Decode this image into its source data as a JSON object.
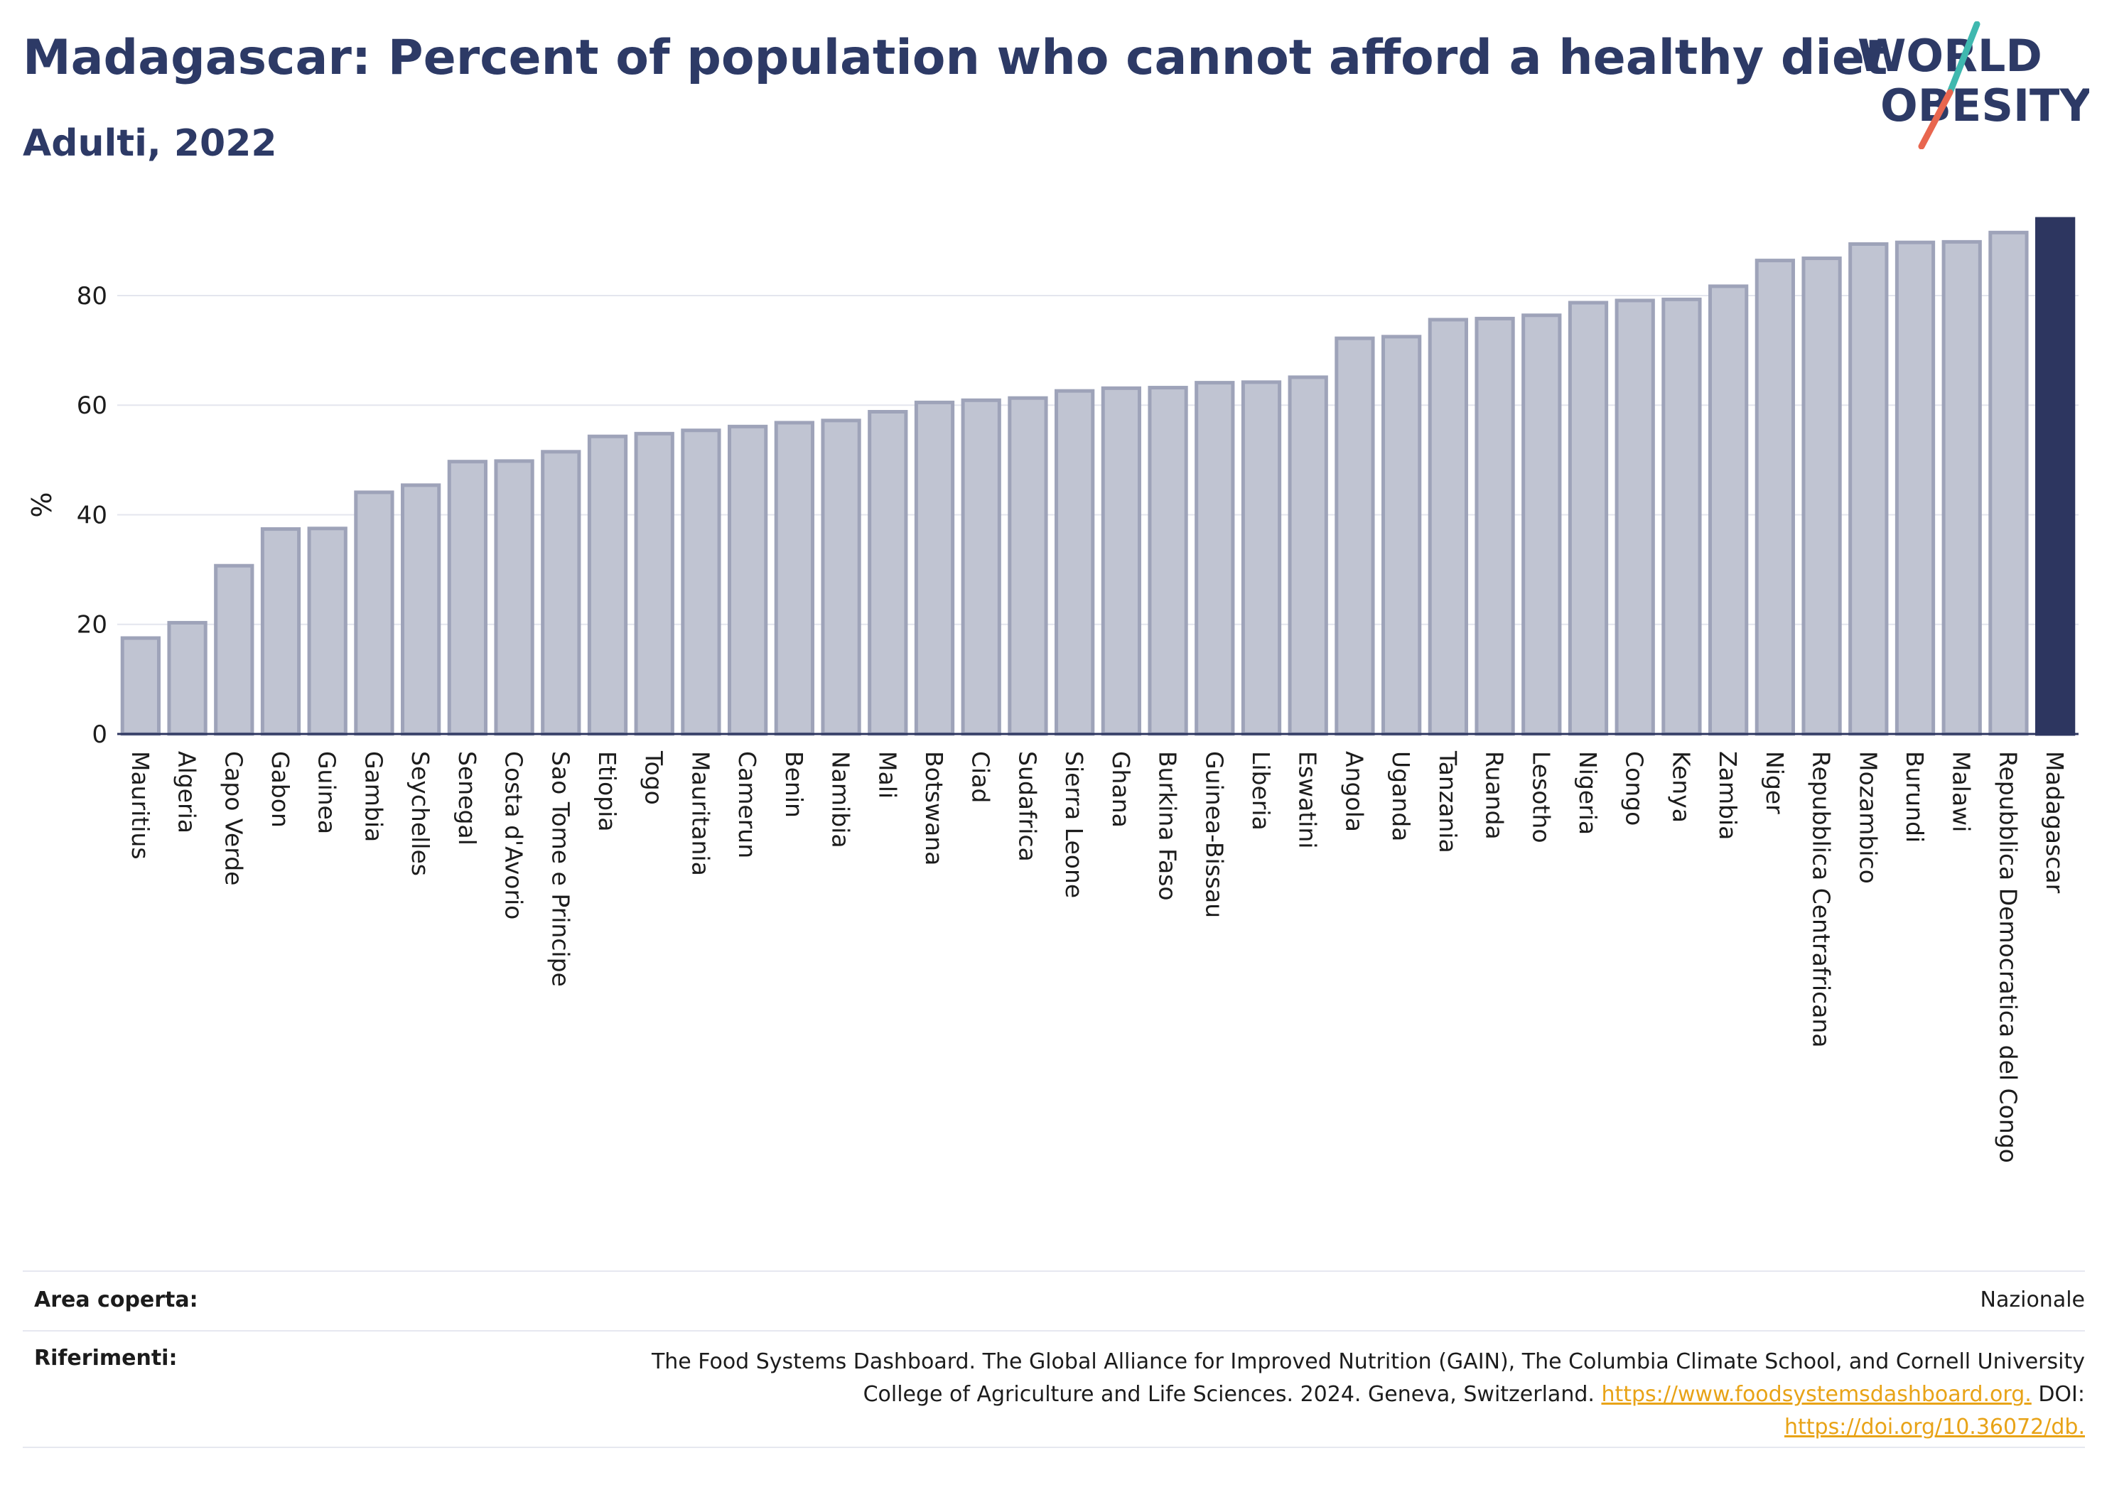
{
  "header": {
    "title": "Madagascar: Percent of population who cannot afford a healthy diet",
    "subtitle": "Adulti, 2022"
  },
  "logo": {
    "line1": "WORLD",
    "line2": "OBESITY",
    "accent_teal": "#3fb8af",
    "accent_red": "#e8664f"
  },
  "colors": {
    "bar": "#c0c4d2",
    "bar_stroke": "#9ea3b9",
    "highlight": "#2d3660",
    "axis": "#2d3660",
    "grid": "#e4e6ee"
  },
  "chart_data": {
    "type": "bar",
    "title": "Madagascar: Percent of population who cannot afford a healthy diet",
    "subtitle": "Adulti, 2022",
    "xlabel": "",
    "ylabel": "%",
    "ylim": [
      0,
      94
    ],
    "yticks": [
      0,
      20,
      40,
      60,
      80
    ],
    "grid": true,
    "highlight": "Madagascar",
    "categories": [
      "Mauritius",
      "Algeria",
      "Capo Verde",
      "Gabon",
      "Guinea",
      "Gambia",
      "Seychelles",
      "Senegal",
      "Costa d'Avorio",
      "Sao Tome e Principe",
      "Etiopia",
      "Togo",
      "Mauritania",
      "Camerun",
      "Benin",
      "Namibia",
      "Mali",
      "Botswana",
      "Ciad",
      "Sudafrica",
      "Sierra Leone",
      "Ghana",
      "Burkina Faso",
      "Guinea-Bissau",
      "Liberia",
      "Eswatini",
      "Angola",
      "Uganda",
      "Tanzania",
      "Ruanda",
      "Lesotho",
      "Nigeria",
      "Congo",
      "Kenya",
      "Zambia",
      "Niger",
      "Repubblica Centrafricana",
      "Mozambico",
      "Burundi",
      "Malawi",
      "Repubblica Democratica del Congo",
      "Madagascar"
    ],
    "values": [
      17.5,
      20.3,
      30.7,
      37.4,
      37.5,
      44.1,
      45.4,
      49.7,
      49.8,
      51.5,
      54.3,
      54.8,
      55.4,
      56.1,
      56.8,
      57.2,
      58.8,
      60.5,
      60.9,
      61.3,
      62.6,
      63.1,
      63.2,
      64.1,
      64.2,
      65.1,
      72.2,
      72.5,
      75.6,
      75.8,
      76.4,
      78.7,
      79.1,
      79.3,
      81.7,
      86.4,
      86.8,
      89.4,
      89.7,
      89.8,
      91.5,
      94.0
    ]
  },
  "footer": {
    "area_label": "Area coperta:",
    "area_value": "Nazionale",
    "ref_label": "Riferimenti:",
    "ref_line1": "The Food Systems Dashboard. The Global Alliance for Improved Nutrition (GAIN), The Columbia Climate School, and Cornell University",
    "ref_line2_text": "College of Agriculture and Life Sciences. 2024. Geneva, Switzerland.",
    "ref_link1": "https://www.foodsystemsdashboard.org.",
    "ref_doi": "DOI:",
    "ref_link2": "https://doi.org/10.36072/db."
  }
}
